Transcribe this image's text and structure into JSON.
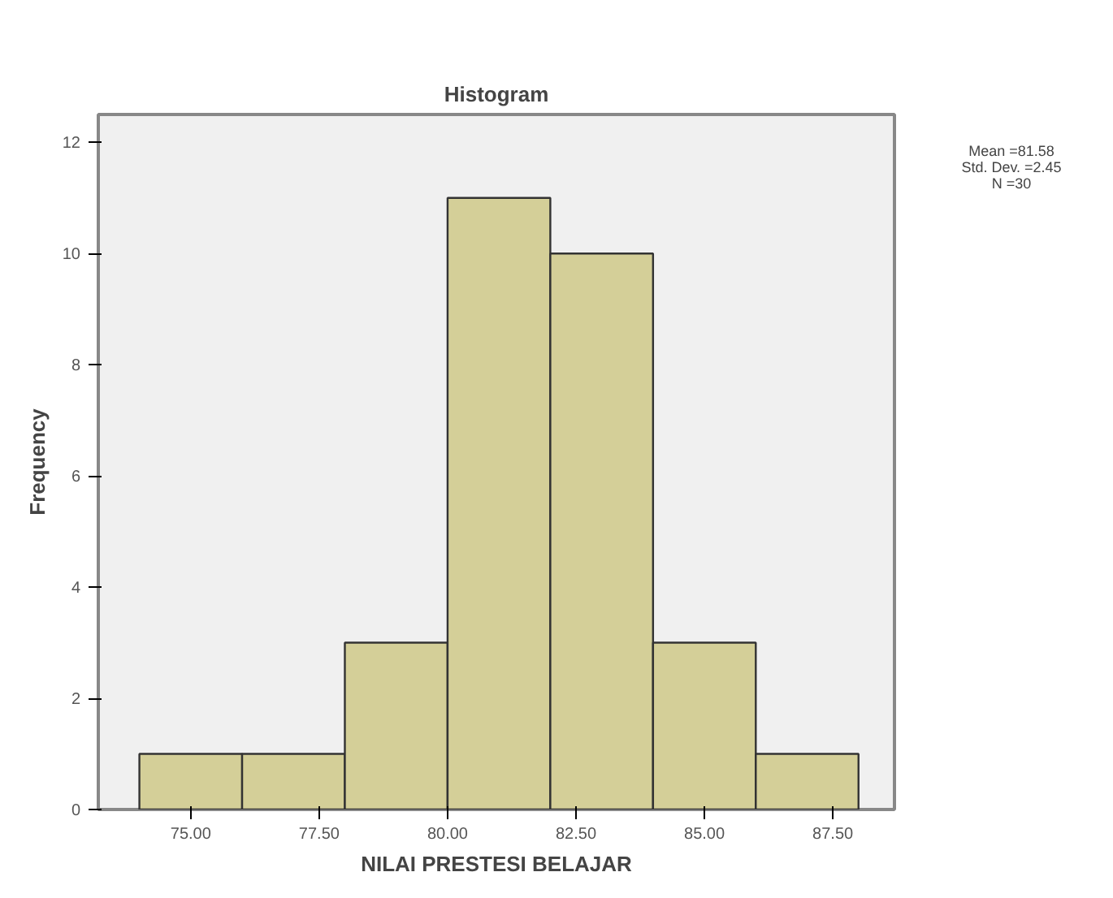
{
  "chart_data": {
    "type": "histogram",
    "title": "Histogram",
    "xlabel": "NILAI PRESTESI BELAJAR",
    "ylabel": "Frequency",
    "bins": [
      74,
      76,
      78,
      80,
      82,
      84,
      86,
      88
    ],
    "values": [
      1,
      1,
      3,
      11,
      10,
      3,
      1
    ],
    "color": "#d4cf98",
    "xlim": [
      73.2,
      88.7
    ],
    "ylim": [
      0,
      12.5
    ],
    "xticks": [
      {
        "value": 75,
        "label": "75.00"
      },
      {
        "value": 77.5,
        "label": "77.50"
      },
      {
        "value": 80,
        "label": "80.00"
      },
      {
        "value": 82.5,
        "label": "82.50"
      },
      {
        "value": 85,
        "label": "85.00"
      },
      {
        "value": 87.5,
        "label": "87.50"
      }
    ],
    "yticks": [
      0,
      2,
      4,
      6,
      8,
      10,
      12
    ],
    "grid": false,
    "annotations": [
      "Mean =81.58",
      "Std. Dev. =2.45",
      "N =30"
    ]
  }
}
